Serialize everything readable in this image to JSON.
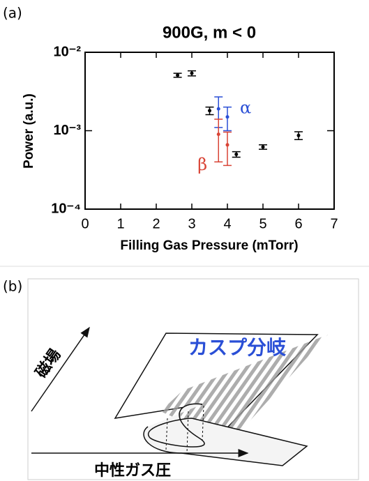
{
  "chart_data": {
    "type": "scatter",
    "panel_label": "(a)",
    "title": "900G, m < 0",
    "x_label": "Filling Gas Pressure (mTorr)",
    "y_label": "Power (a.u.)",
    "xlim": [
      0,
      7
    ],
    "xticks": [
      0,
      1,
      2,
      3,
      4,
      5,
      6,
      7
    ],
    "ylim": [
      0.0001,
      0.01
    ],
    "y_log": true,
    "yticks": [
      {
        "value": 0.0001,
        "label": "10⁻⁴"
      },
      {
        "value": 0.001,
        "label": "10⁻³"
      },
      {
        "value": 0.01,
        "label": "10⁻²"
      }
    ],
    "series": [
      {
        "color": "#000000",
        "x": [
          2.6,
          3.0,
          3.5,
          4.25,
          5.0,
          6.0
        ],
        "values": [
          0.0051,
          0.0054,
          0.0018,
          0.0005,
          0.00062,
          0.00087
        ],
        "errors": [
          0.0003,
          0.0004,
          0.0002,
          4e-05,
          4e-05,
          0.0001
        ]
      },
      {
        "name": "α",
        "color": "#2a4fd6",
        "x": [
          3.75,
          4.0
        ],
        "values": [
          0.0019,
          0.0015
        ],
        "errors": [
          0.0008,
          0.0005
        ]
      },
      {
        "name": "β",
        "color": "#d94436",
        "x": [
          3.75,
          4.0
        ],
        "values": [
          0.0009,
          0.00066
        ],
        "errors": [
          0.0005,
          0.0003
        ]
      }
    ]
  },
  "panel_b": {
    "label": "(b)",
    "title": "カスプ分岐",
    "y_label": "磁場",
    "x_label": "中性ガス圧"
  }
}
